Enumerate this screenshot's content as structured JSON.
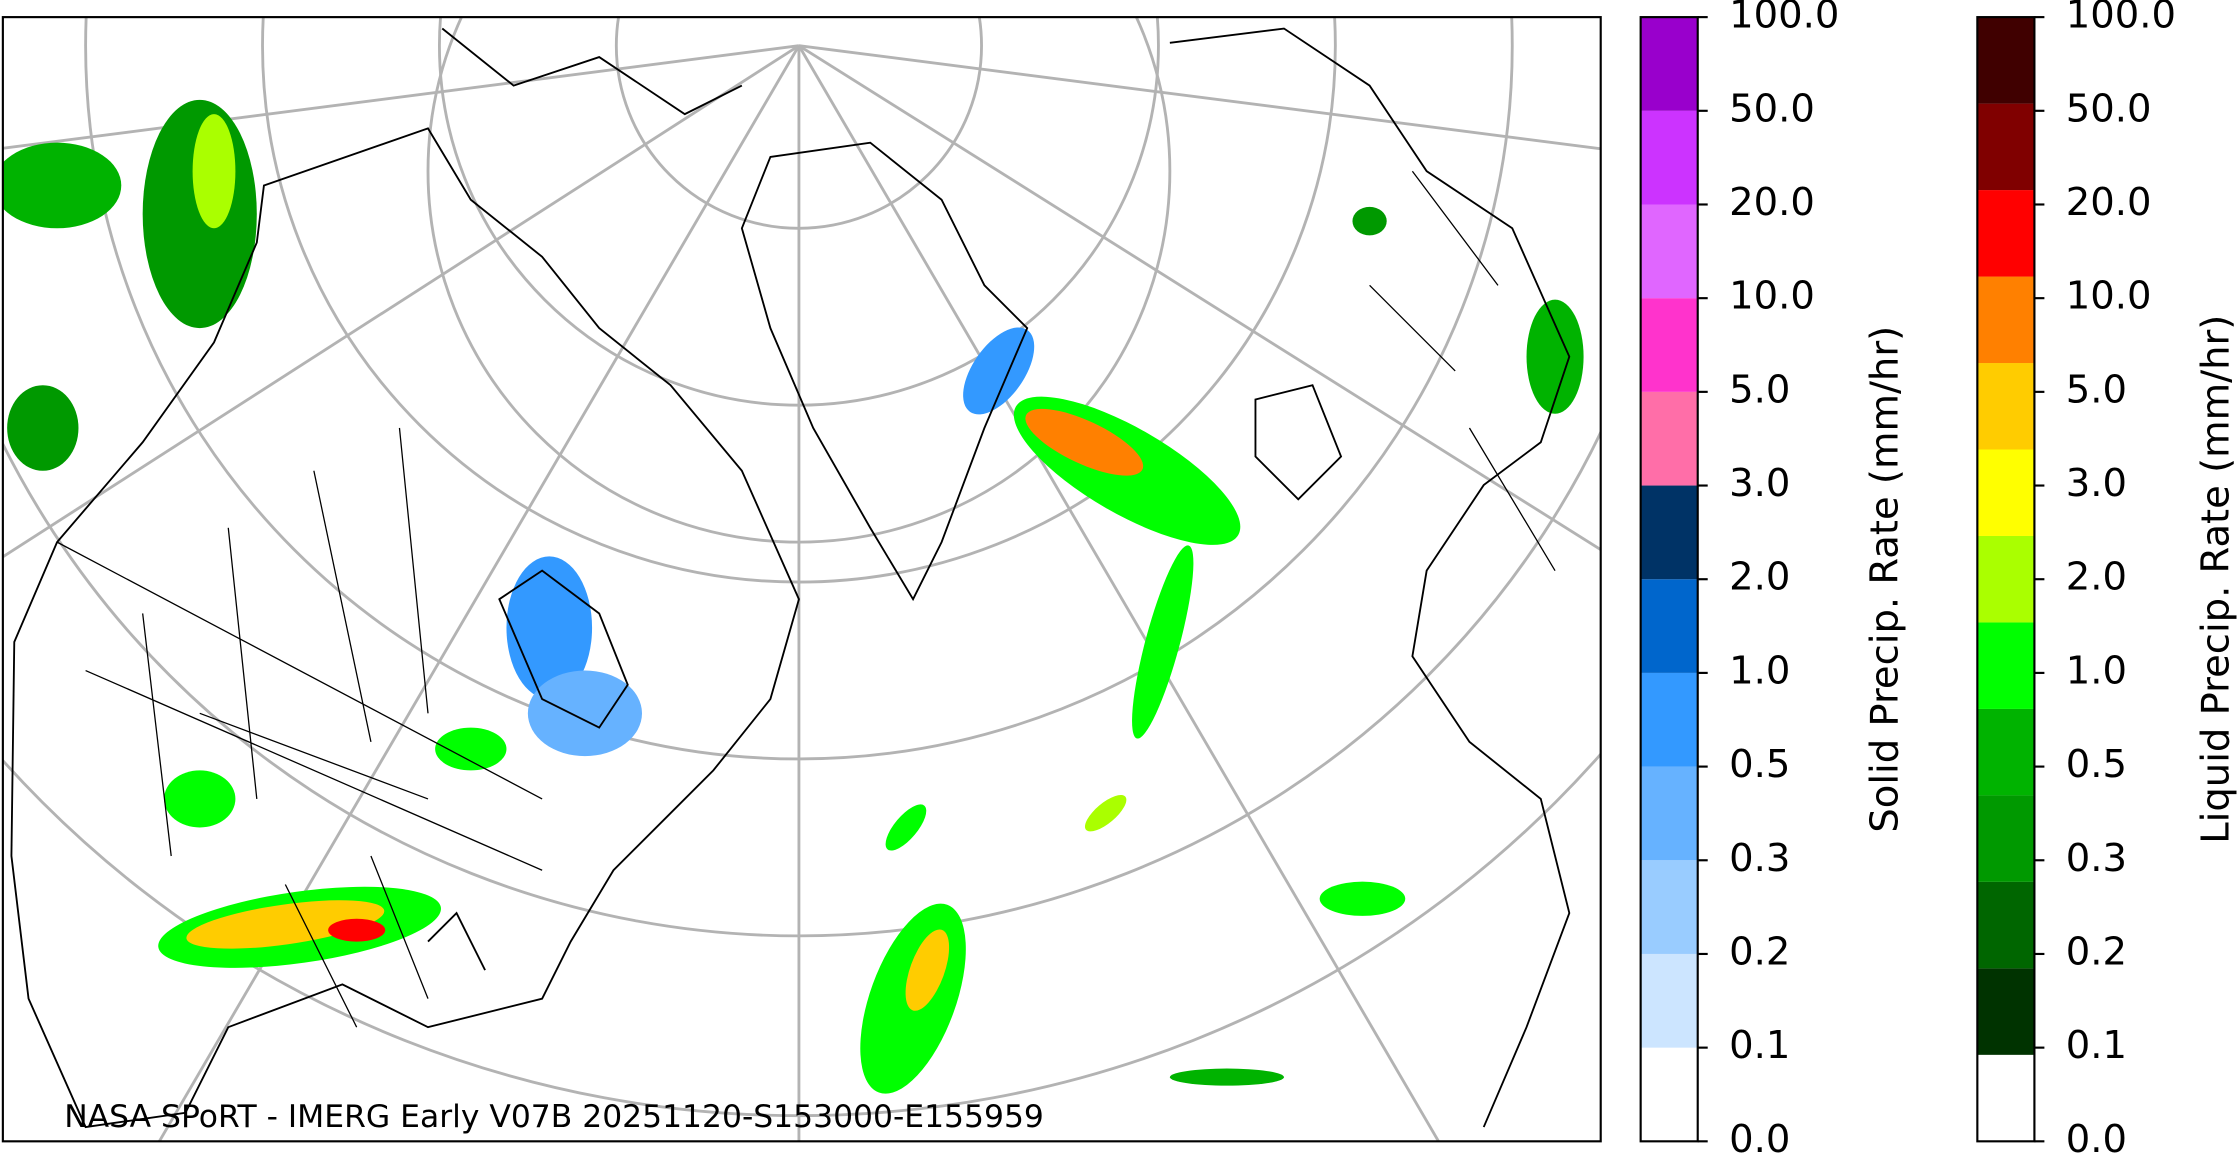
{
  "map": {
    "caption": "NASA SPoRT - IMERG Early V07B 20251120-S153000-E155959"
  },
  "colorbars": [
    {
      "label": "Solid Precip. Rate (mm/hr)",
      "ticks": [
        {
          "value": 0,
          "label": "0.0"
        },
        {
          "value": 0.1,
          "label": "0.1"
        },
        {
          "value": 0.2,
          "label": "0.2"
        },
        {
          "value": 0.3,
          "label": "0.3"
        },
        {
          "value": 0.5,
          "label": "0.5"
        },
        {
          "value": 1,
          "label": "1.0"
        },
        {
          "value": 2,
          "label": "2.0"
        },
        {
          "value": 3,
          "label": "3.0"
        },
        {
          "value": 5,
          "label": "5.0"
        },
        {
          "value": 10,
          "label": "10.0"
        },
        {
          "value": 20,
          "label": "20.0"
        },
        {
          "value": 50,
          "label": "50.0"
        },
        {
          "value": 100,
          "label": "100.0"
        }
      ],
      "colors": [
        "#ffffff",
        "#cce5ff",
        "#99ccff",
        "#66b2ff",
        "#3399ff",
        "#0066cc",
        "#003366",
        "#ff6ea8",
        "#ff33cc",
        "#e066ff",
        "#cc33ff",
        "#9900cc"
      ]
    },
    {
      "label": "Liquid Precip. Rate (mm/hr)",
      "ticks": [
        {
          "value": 0,
          "label": "0.0"
        },
        {
          "value": 0.1,
          "label": "0.1"
        },
        {
          "value": 0.2,
          "label": "0.2"
        },
        {
          "value": 0.3,
          "label": "0.3"
        },
        {
          "value": 0.5,
          "label": "0.5"
        },
        {
          "value": 1,
          "label": "1.0"
        },
        {
          "value": 2,
          "label": "2.0"
        },
        {
          "value": 3,
          "label": "3.0"
        },
        {
          "value": 5,
          "label": "5.0"
        },
        {
          "value": 10,
          "label": "10.0"
        },
        {
          "value": 20,
          "label": "20.0"
        },
        {
          "value": 50,
          "label": "50.0"
        },
        {
          "value": 100,
          "label": "100.0"
        }
      ],
      "colors": [
        "#ffffff",
        "#003300",
        "#006600",
        "#009900",
        "#00b300",
        "#00ff00",
        "#aaff00",
        "#ffff00",
        "#ffcc00",
        "#ff8000",
        "#ff0000",
        "#800000",
        "#400000"
      ]
    }
  ]
}
